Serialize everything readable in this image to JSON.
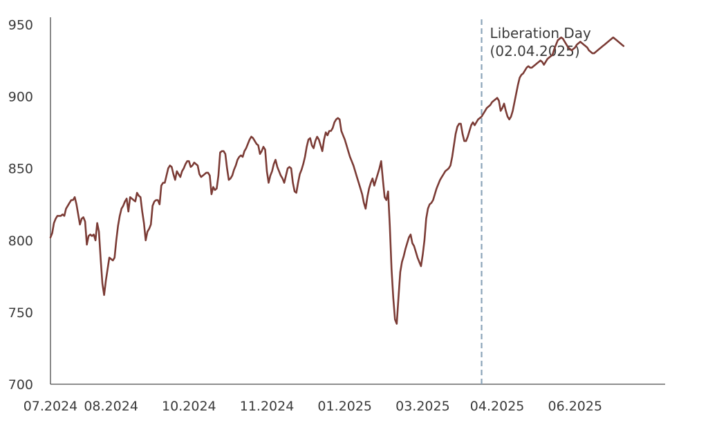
{
  "chart_data": {
    "type": "line",
    "title": "",
    "xlabel": "",
    "ylabel": "",
    "ylim": [
      700,
      955
    ],
    "y_ticks": [
      700,
      750,
      800,
      850,
      900,
      950
    ],
    "x_ticks": [
      "07.2024",
      "08.2024",
      "10.2024",
      "11.2024",
      "01.2025",
      "03.2025",
      "04.2025",
      "06.2025"
    ],
    "x_ticks_index": [
      0,
      35,
      80,
      125,
      170,
      215,
      258,
      303
    ],
    "x_range_index": [
      0,
      355
    ],
    "grid": false,
    "legend": "none",
    "line_color": "#7b3b35",
    "annotation_color": "#8aa3b8",
    "annotation": {
      "index": 249,
      "line1": "Liberation Day",
      "line2": "(02.04.2025)"
    },
    "series": [
      {
        "values": [
          802,
          805,
          812,
          815,
          817,
          817,
          817,
          818,
          817,
          822,
          824,
          826,
          828,
          828,
          830,
          825,
          818,
          811,
          815,
          816,
          813,
          797,
          803,
          804,
          803,
          804,
          800,
          812,
          806,
          787,
          770,
          762,
          772,
          780,
          788,
          787,
          786,
          788,
          800,
          810,
          817,
          822,
          824,
          827,
          829,
          820,
          830,
          829,
          828,
          827,
          833,
          831,
          830,
          820,
          812,
          800,
          806,
          808,
          811,
          824,
          827,
          828,
          828,
          825,
          838,
          840,
          840,
          845,
          850,
          852,
          851,
          846,
          842,
          848,
          846,
          844,
          848,
          850,
          853,
          855,
          855,
          851,
          852,
          854,
          853,
          852,
          846,
          844,
          845,
          846,
          847,
          847,
          845,
          832,
          837,
          835,
          836,
          845,
          861,
          862,
          862,
          860,
          850,
          842,
          843,
          845,
          849,
          852,
          856,
          858,
          859,
          858,
          862,
          864,
          867,
          870,
          872,
          871,
          869,
          867,
          866,
          860,
          862,
          865,
          863,
          848,
          840,
          845,
          848,
          853,
          856,
          851,
          848,
          845,
          843,
          840,
          845,
          850,
          851,
          850,
          840,
          834,
          833,
          840,
          846,
          849,
          853,
          858,
          865,
          870,
          871,
          866,
          864,
          869,
          872,
          870,
          866,
          862,
          870,
          875,
          873,
          876,
          876,
          878,
          882,
          884,
          885,
          884,
          876,
          873,
          870,
          866,
          862,
          858,
          855,
          852,
          848,
          844,
          840,
          836,
          832,
          826,
          822,
          830,
          836,
          840,
          843,
          838,
          842,
          846,
          850,
          855,
          842,
          830,
          828,
          834,
          810,
          780,
          760,
          745,
          742,
          760,
          778,
          785,
          789,
          794,
          798,
          802,
          804,
          798,
          796,
          792,
          788,
          785,
          782,
          790,
          800,
          815,
          822,
          825,
          826,
          828,
          832,
          836,
          839,
          842,
          844,
          846,
          848,
          849,
          850,
          852,
          858,
          866,
          874,
          879,
          881,
          881,
          874,
          869,
          869,
          872,
          876,
          880,
          882,
          880,
          882,
          884,
          885,
          886,
          888,
          890,
          892,
          893,
          894,
          896,
          897,
          898,
          899,
          897,
          890,
          892,
          895,
          890,
          886,
          884,
          886,
          890,
          896,
          902,
          908,
          913,
          915,
          916,
          918,
          920,
          921,
          920,
          920,
          921,
          922,
          923,
          924,
          925,
          924,
          922,
          924,
          926,
          927,
          928,
          929,
          933,
          936,
          939,
          940,
          941,
          940,
          938,
          936,
          934,
          933,
          932,
          933,
          934,
          936,
          937,
          938,
          937,
          936,
          935,
          934,
          932,
          931,
          930,
          930,
          931,
          932,
          933,
          934,
          935,
          936,
          937,
          938,
          939,
          940,
          941,
          940,
          939,
          938,
          937,
          936,
          935
        ]
      }
    ]
  }
}
